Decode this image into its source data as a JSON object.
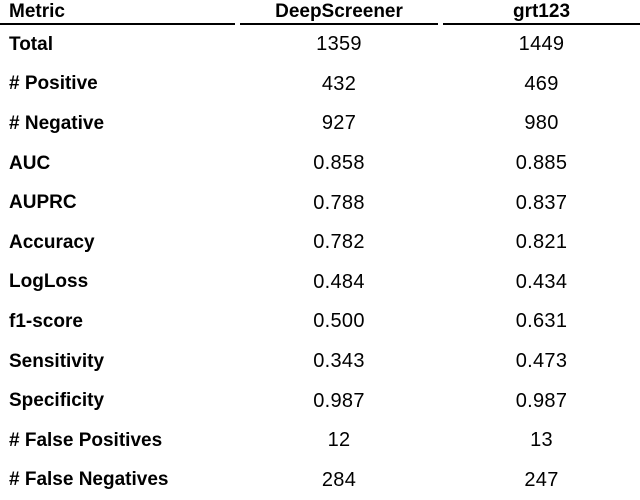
{
  "table": {
    "columns": [
      "Metric",
      "DeepScreener",
      "grt123"
    ],
    "rows": [
      [
        "Total",
        "1359",
        "1449"
      ],
      [
        "# Positive",
        "432",
        "469"
      ],
      [
        "# Negative",
        "927",
        "980"
      ],
      [
        "AUC",
        "0.858",
        "0.885"
      ],
      [
        "AUPRC",
        "0.788",
        "0.837"
      ],
      [
        "Accuracy",
        "0.782",
        "0.821"
      ],
      [
        "LogLoss",
        "0.484",
        "0.434"
      ],
      [
        "f1-score",
        "0.500",
        "0.631"
      ],
      [
        "Sensitivity",
        "0.343",
        "0.473"
      ],
      [
        "Specificity",
        "0.987",
        "0.987"
      ],
      [
        "# False Positives",
        "12",
        "13"
      ],
      [
        "# False Negatives",
        "284",
        "247"
      ]
    ]
  },
  "colors": {
    "text": "#000000",
    "rule": "#000000",
    "background": "#ffffff"
  }
}
